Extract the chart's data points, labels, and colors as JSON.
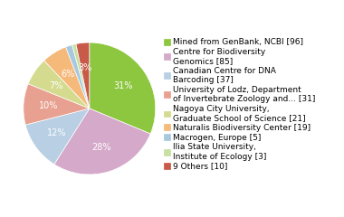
{
  "labels": [
    "Mined from GenBank, NCBI [96]",
    "Centre for Biodiversity\nGenomics [85]",
    "Canadian Centre for DNA\nBarcoding [37]",
    "University of Lodz, Department\nof Invertebrate Zoology and... [31]",
    "Nagoya City University,\nGraduate School of Science [21]",
    "Naturalis Biodiversity Center [19]",
    "Macrogen, Europe [5]",
    "Ilia State University,\nInstitute of Ecology [3]",
    "9 Others [10]"
  ],
  "values": [
    96,
    85,
    37,
    31,
    21,
    19,
    5,
    3,
    10
  ],
  "colors": [
    "#8dc63f",
    "#d4a9c9",
    "#b8cfe4",
    "#e8a090",
    "#d4db8e",
    "#f5b97a",
    "#a8c8e0",
    "#c8e0a0",
    "#c85a4a"
  ],
  "startangle": 90,
  "legend_fontsize": 6.5,
  "pct_fontsize": 7.0,
  "pct_color": "white"
}
